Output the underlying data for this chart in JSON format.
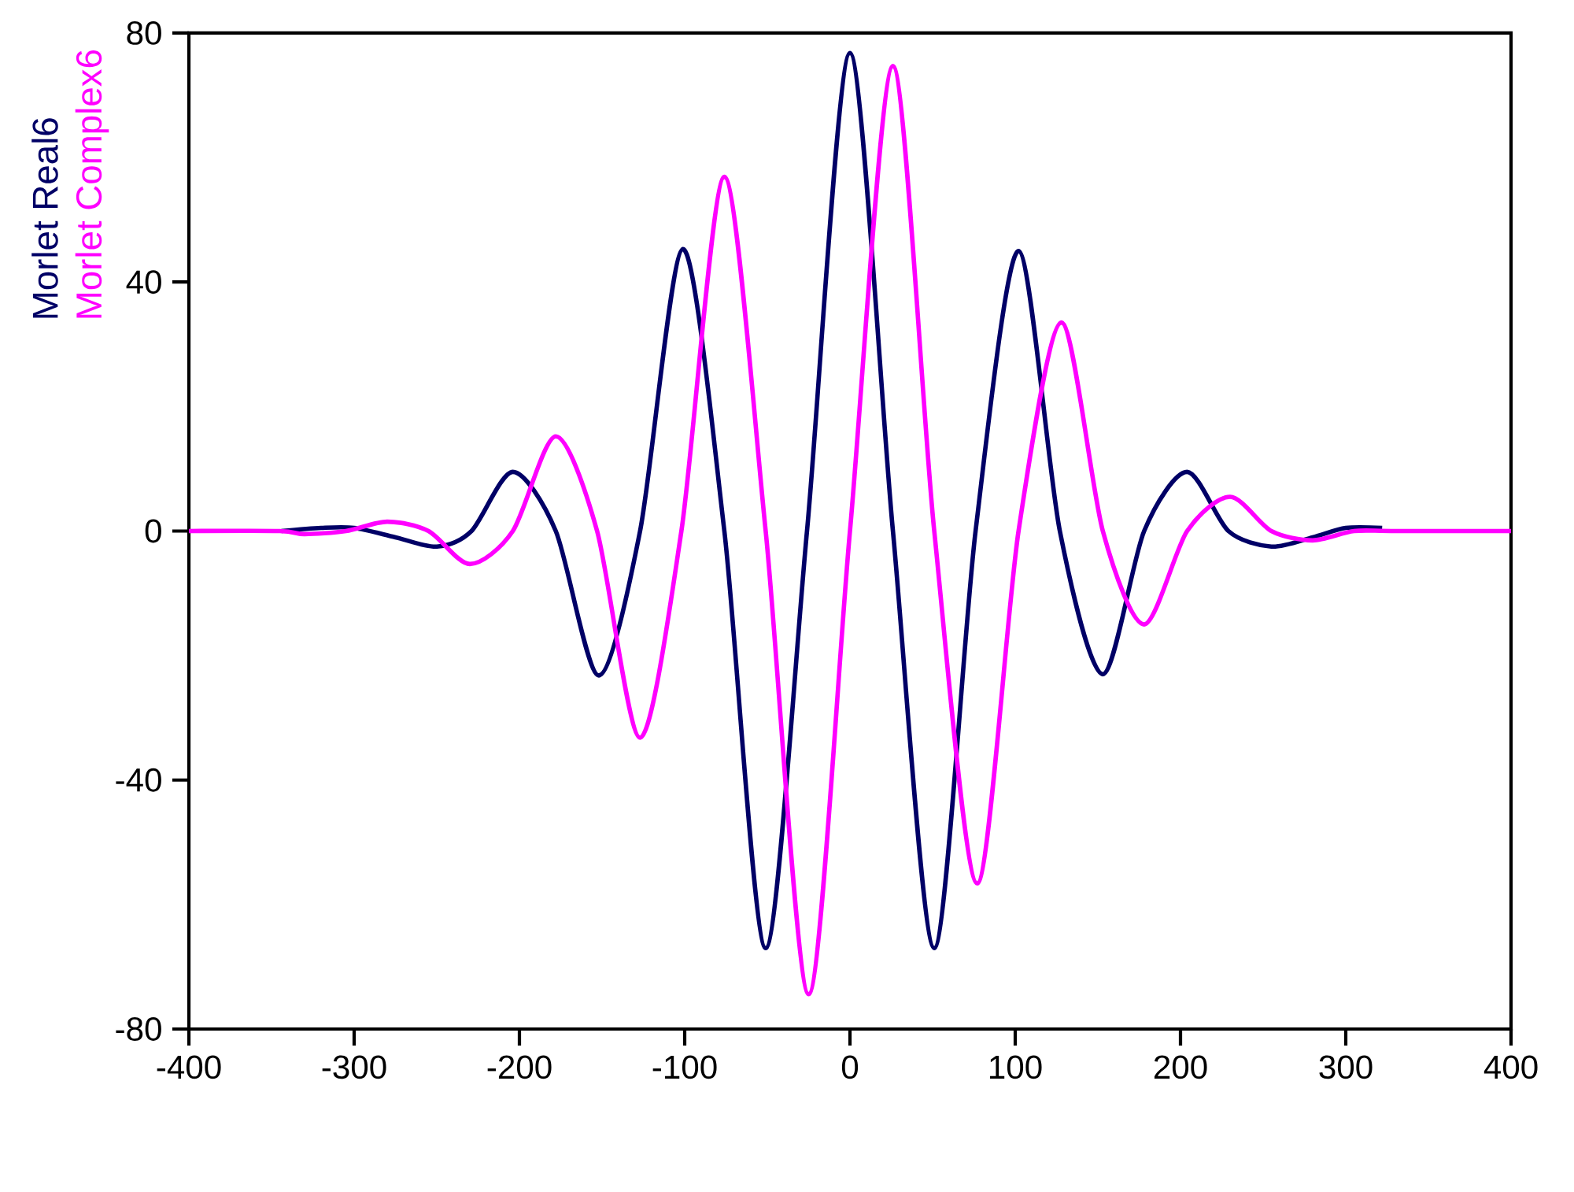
{
  "chart_data": {
    "type": "line",
    "legend": "left",
    "xlim": [
      -400,
      400
    ],
    "xticks": [
      -400,
      -300,
      -200,
      -100,
      0,
      100,
      200,
      300,
      400
    ],
    "ylim": [
      -80,
      80
    ],
    "yticks": [
      -80,
      -40,
      0,
      40,
      80
    ],
    "series": [
      {
        "name": "Morlet Real6",
        "color": "#000066",
        "x": [
          -344,
          -320,
          -300,
          -275,
          -250,
          -229,
          -204,
          -178,
          -152,
          -127,
          -101,
          -76,
          -51,
          -26,
          0,
          26,
          51,
          76,
          102,
          127,
          153,
          178,
          204,
          229,
          255,
          280,
          300,
          322
        ],
        "values": [
          0,
          0.5,
          0.5,
          -1,
          -2.5,
          0,
          9.5,
          0,
          -23.2,
          0,
          45.3,
          0,
          -67,
          0,
          76.8,
          0,
          -67,
          0,
          45,
          0,
          -23,
          0,
          9.5,
          0,
          -2.5,
          -1,
          0.5,
          0.5
        ]
      },
      {
        "name": "Morlet Complex6",
        "color": "#ff00ff",
        "x": [
          -400,
          -345,
          -330,
          -305,
          -280,
          -255,
          -230,
          -204,
          -178,
          -153,
          -127,
          -102,
          -76,
          -51,
          -25,
          0,
          26,
          51,
          77,
          102,
          128,
          153,
          178,
          204,
          230,
          255,
          280,
          305,
          330,
          400
        ],
        "values": [
          0,
          0,
          -0.5,
          0,
          1.5,
          0,
          -5.3,
          0,
          15.2,
          0,
          -33.2,
          0,
          56.9,
          0,
          -74.4,
          0,
          74.7,
          0,
          -56.6,
          0,
          33.5,
          0,
          -15,
          0,
          5.5,
          0,
          -1.5,
          0,
          0,
          0
        ]
      }
    ]
  }
}
